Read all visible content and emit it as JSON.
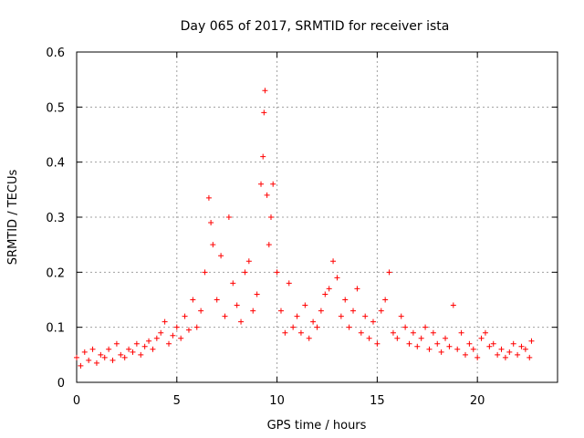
{
  "chart_data": {
    "type": "scatter",
    "title": "Day 065 of 2017, SRMTID for receiver ista",
    "xlabel": "GPS time / hours",
    "ylabel": "SRMTID / TECUs",
    "xlim": [
      0,
      24
    ],
    "ylim": [
      0,
      0.6
    ],
    "xticks": [
      0,
      5,
      10,
      15,
      20
    ],
    "yticks": [
      0,
      0.1,
      0.2,
      0.3,
      0.4,
      0.5,
      0.6
    ],
    "xtick_labels": [
      "0",
      "5",
      "10",
      "15",
      "20"
    ],
    "ytick_labels": [
      "0",
      "0.1",
      "0.2",
      "0.3",
      "0.4",
      "0.5",
      "0.6"
    ],
    "grid": true,
    "marker": "+",
    "marker_color": "#ff0000",
    "series": [
      {
        "name": "SRMTID",
        "points": [
          [
            0.0,
            0.045
          ],
          [
            0.2,
            0.03
          ],
          [
            0.4,
            0.055
          ],
          [
            0.6,
            0.04
          ],
          [
            0.8,
            0.06
          ],
          [
            1.0,
            0.035
          ],
          [
            1.2,
            0.05
          ],
          [
            1.4,
            0.045
          ],
          [
            1.6,
            0.06
          ],
          [
            1.8,
            0.04
          ],
          [
            2.0,
            0.07
          ],
          [
            2.2,
            0.05
          ],
          [
            2.4,
            0.045
          ],
          [
            2.6,
            0.06
          ],
          [
            2.8,
            0.055
          ],
          [
            3.0,
            0.07
          ],
          [
            3.2,
            0.05
          ],
          [
            3.4,
            0.065
          ],
          [
            3.6,
            0.075
          ],
          [
            3.8,
            0.06
          ],
          [
            4.0,
            0.08
          ],
          [
            4.2,
            0.09
          ],
          [
            4.4,
            0.11
          ],
          [
            4.6,
            0.07
          ],
          [
            4.8,
            0.085
          ],
          [
            5.0,
            0.1
          ],
          [
            5.2,
            0.08
          ],
          [
            5.4,
            0.12
          ],
          [
            5.6,
            0.095
          ],
          [
            5.8,
            0.15
          ],
          [
            6.0,
            0.1
          ],
          [
            6.2,
            0.13
          ],
          [
            6.4,
            0.2
          ],
          [
            6.6,
            0.335
          ],
          [
            6.7,
            0.29
          ],
          [
            6.8,
            0.25
          ],
          [
            7.0,
            0.15
          ],
          [
            7.2,
            0.23
          ],
          [
            7.4,
            0.12
          ],
          [
            7.6,
            0.3
          ],
          [
            7.8,
            0.18
          ],
          [
            8.0,
            0.14
          ],
          [
            8.2,
            0.11
          ],
          [
            8.4,
            0.2
          ],
          [
            8.6,
            0.22
          ],
          [
            8.8,
            0.13
          ],
          [
            9.0,
            0.16
          ],
          [
            9.2,
            0.36
          ],
          [
            9.3,
            0.41
          ],
          [
            9.35,
            0.49
          ],
          [
            9.4,
            0.53
          ],
          [
            9.5,
            0.34
          ],
          [
            9.6,
            0.25
          ],
          [
            9.7,
            0.3
          ],
          [
            9.8,
            0.36
          ],
          [
            10.0,
            0.2
          ],
          [
            10.2,
            0.13
          ],
          [
            10.4,
            0.09
          ],
          [
            10.6,
            0.18
          ],
          [
            10.8,
            0.1
          ],
          [
            11.0,
            0.12
          ],
          [
            11.2,
            0.09
          ],
          [
            11.4,
            0.14
          ],
          [
            11.6,
            0.08
          ],
          [
            11.8,
            0.11
          ],
          [
            12.0,
            0.1
          ],
          [
            12.2,
            0.13
          ],
          [
            12.4,
            0.16
          ],
          [
            12.6,
            0.17
          ],
          [
            12.8,
            0.22
          ],
          [
            13.0,
            0.19
          ],
          [
            13.2,
            0.12
          ],
          [
            13.4,
            0.15
          ],
          [
            13.6,
            0.1
          ],
          [
            13.8,
            0.13
          ],
          [
            14.0,
            0.17
          ],
          [
            14.2,
            0.09
          ],
          [
            14.4,
            0.12
          ],
          [
            14.6,
            0.08
          ],
          [
            14.8,
            0.11
          ],
          [
            15.0,
            0.07
          ],
          [
            15.2,
            0.13
          ],
          [
            15.4,
            0.15
          ],
          [
            15.6,
            0.2
          ],
          [
            15.8,
            0.09
          ],
          [
            16.0,
            0.08
          ],
          [
            16.2,
            0.12
          ],
          [
            16.4,
            0.1
          ],
          [
            16.6,
            0.07
          ],
          [
            16.8,
            0.09
          ],
          [
            17.0,
            0.065
          ],
          [
            17.2,
            0.08
          ],
          [
            17.4,
            0.1
          ],
          [
            17.6,
            0.06
          ],
          [
            17.8,
            0.09
          ],
          [
            18.0,
            0.07
          ],
          [
            18.2,
            0.055
          ],
          [
            18.4,
            0.08
          ],
          [
            18.6,
            0.065
          ],
          [
            18.8,
            0.14
          ],
          [
            19.0,
            0.06
          ],
          [
            19.2,
            0.09
          ],
          [
            19.4,
            0.05
          ],
          [
            19.6,
            0.07
          ],
          [
            19.8,
            0.06
          ],
          [
            20.0,
            0.045
          ],
          [
            20.2,
            0.08
          ],
          [
            20.4,
            0.09
          ],
          [
            20.6,
            0.065
          ],
          [
            20.8,
            0.07
          ],
          [
            21.0,
            0.05
          ],
          [
            21.2,
            0.06
          ],
          [
            21.4,
            0.045
          ],
          [
            21.6,
            0.055
          ],
          [
            21.8,
            0.07
          ],
          [
            22.0,
            0.05
          ],
          [
            22.2,
            0.065
          ],
          [
            22.4,
            0.06
          ],
          [
            22.6,
            0.045
          ],
          [
            22.7,
            0.075
          ]
        ]
      }
    ]
  }
}
